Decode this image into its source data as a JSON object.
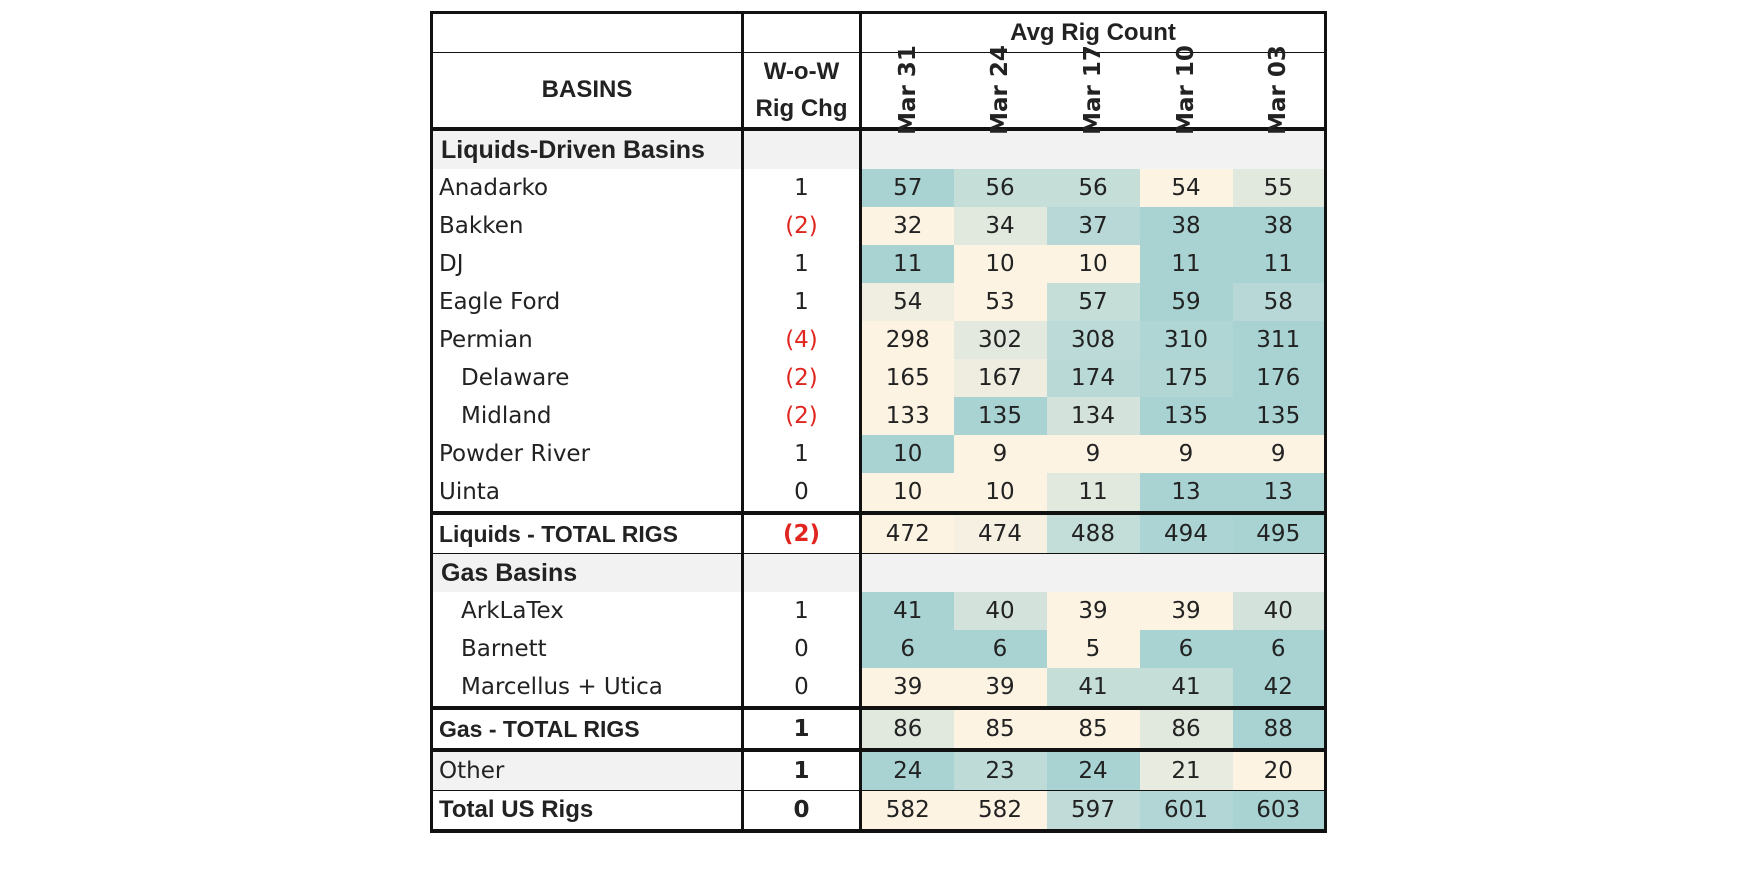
{
  "chart_data": {
    "type": "table",
    "header": {
      "group_label": "Avg Rig Count",
      "basins_label": "BASINS",
      "change_label_line1": "W-o-W",
      "change_label_line2": "Rig Chg",
      "dates": [
        "Mar 31",
        "Mar 24",
        "Mar 17",
        "Mar 10",
        "Mar 03"
      ]
    },
    "colors": {
      "high": "#a9d3d3",
      "low": "#fdf3e3",
      "negative_text": "#e0261f",
      "section_bg": "#f2f2f2"
    },
    "rows": [
      {
        "kind": "section",
        "label": "Liquids-Driven Basins"
      },
      {
        "kind": "data",
        "label": "Anadarko",
        "change": "1",
        "values": [
          57,
          56,
          56,
          54,
          55
        ]
      },
      {
        "kind": "data",
        "label": "Bakken",
        "change": "(2)",
        "values": [
          32,
          34,
          37,
          38,
          38
        ]
      },
      {
        "kind": "data",
        "label": "DJ",
        "change": "1",
        "values": [
          11,
          10,
          10,
          11,
          11
        ]
      },
      {
        "kind": "data",
        "label": "Eagle Ford",
        "change": "1",
        "values": [
          54,
          53,
          57,
          59,
          58
        ]
      },
      {
        "kind": "data",
        "label": "Permian",
        "change": "(4)",
        "values": [
          298,
          302,
          308,
          310,
          311
        ]
      },
      {
        "kind": "data",
        "label": "Delaware",
        "indent": true,
        "change": "(2)",
        "values": [
          165,
          167,
          174,
          175,
          176
        ]
      },
      {
        "kind": "data",
        "label": "Midland",
        "indent": true,
        "change": "(2)",
        "values": [
          133,
          135,
          134,
          135,
          135
        ]
      },
      {
        "kind": "data",
        "label": "Powder River",
        "change": "1",
        "values": [
          10,
          9,
          9,
          9,
          9
        ]
      },
      {
        "kind": "data",
        "label": "Uinta",
        "change": "0",
        "values": [
          10,
          10,
          11,
          13,
          13
        ]
      },
      {
        "kind": "total",
        "label": "Liquids - TOTAL RIGS",
        "change": "(2)",
        "values": [
          472,
          474,
          488,
          494,
          495
        ]
      },
      {
        "kind": "section",
        "label": "Gas Basins"
      },
      {
        "kind": "data",
        "label": "ArkLaTex",
        "indent": true,
        "change": "1",
        "values": [
          41,
          40,
          39,
          39,
          40
        ]
      },
      {
        "kind": "data",
        "label": "Barnett",
        "indent": true,
        "change": "0",
        "values": [
          6,
          6,
          5,
          6,
          6
        ]
      },
      {
        "kind": "data",
        "label": "Marcellus + Utica",
        "indent": true,
        "change": "0",
        "values": [
          39,
          39,
          41,
          41,
          42
        ]
      },
      {
        "kind": "total",
        "label": "Gas - TOTAL RIGS",
        "change": "1",
        "values": [
          86,
          85,
          85,
          86,
          88
        ]
      },
      {
        "kind": "other",
        "label": "Other",
        "change": "1",
        "values": [
          24,
          23,
          24,
          21,
          20
        ]
      },
      {
        "kind": "grand",
        "label": "Total US Rigs",
        "change": "0",
        "values": [
          582,
          582,
          597,
          601,
          603
        ]
      }
    ]
  }
}
